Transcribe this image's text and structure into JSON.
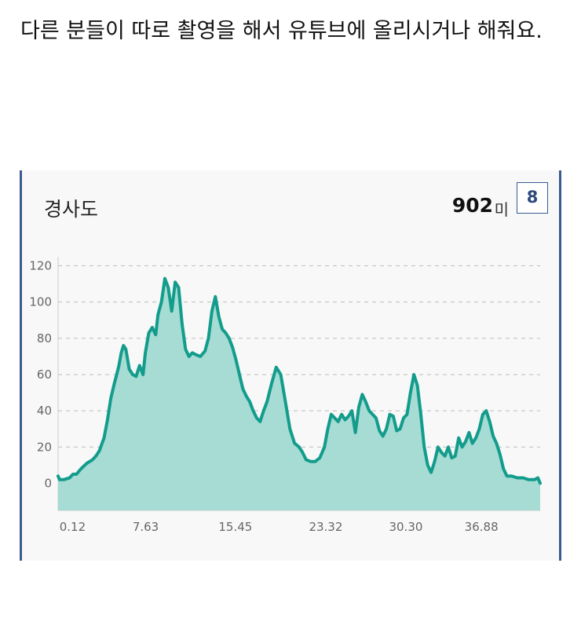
{
  "post": {
    "text": "다른 분들이 따로 촬영을 해서 유튜브에 올리시거나 해줘요."
  },
  "card": {
    "title": "경사도",
    "value": "902",
    "unit": "미",
    "badge": "8"
  },
  "colors": {
    "line": "#139c8c",
    "fill": "#a6dcd3",
    "grid": "#bbbbbb",
    "card_border": "#3a5a92"
  },
  "chart_data": {
    "type": "area",
    "title": "경사도",
    "xlabel": "",
    "ylabel": "",
    "ylim": [
      -15,
      125
    ],
    "xlim": [
      0,
      42
    ],
    "grid": true,
    "yticks": [
      0,
      20,
      40,
      60,
      80,
      100,
      120
    ],
    "ytick_labels": [
      "0",
      "20",
      "40",
      "60",
      "80",
      "100",
      "120"
    ],
    "xticks": [
      0.12,
      7.63,
      15.45,
      23.32,
      30.3,
      36.88
    ],
    "xtick_labels": [
      "0.12",
      "7.63",
      "15.45",
      "23.32",
      "30.30",
      "36.88"
    ],
    "x": [
      0,
      0.12,
      0.5,
      1,
      1.3,
      1.6,
      2,
      2.5,
      3,
      3.3,
      3.6,
      4,
      4.3,
      4.6,
      4.9,
      5.1,
      5.3,
      5.5,
      5.7,
      5.9,
      6.2,
      6.5,
      6.8,
      7.1,
      7.4,
      7.6,
      7.9,
      8.2,
      8.5,
      8.7,
      9.0,
      9.3,
      9.6,
      9.9,
      10.2,
      10.5,
      10.8,
      11.1,
      11.4,
      11.7,
      12.0,
      12.4,
      12.8,
      13.1,
      13.4,
      13.7,
      14.0,
      14.3,
      14.6,
      14.9,
      15.2,
      15.5,
      15.8,
      16.1,
      16.4,
      16.7,
      17.0,
      17.3,
      17.6,
      17.9,
      18.2,
      18.6,
      19.0,
      19.4,
      19.8,
      20.2,
      20.6,
      21.0,
      21.3,
      21.6,
      22.0,
      22.4,
      22.8,
      23.2,
      23.5,
      23.8,
      24.1,
      24.4,
      24.7,
      25.0,
      25.3,
      25.6,
      25.9,
      26.2,
      26.5,
      26.8,
      27.1,
      27.4,
      27.7,
      28.0,
      28.3,
      28.6,
      28.9,
      29.2,
      29.5,
      29.8,
      30.1,
      30.4,
      30.7,
      31.0,
      31.3,
      31.6,
      31.9,
      32.2,
      32.5,
      32.8,
      33.1,
      33.4,
      33.7,
      34.0,
      34.3,
      34.6,
      34.9,
      35.2,
      35.5,
      35.8,
      36.1,
      36.4,
      36.7,
      37.0,
      37.3,
      37.6,
      37.9,
      38.2,
      38.5,
      38.8,
      39.1,
      39.5,
      40.0,
      40.5,
      41.0,
      41.5,
      41.8,
      42.0
    ],
    "values": [
      4,
      2,
      2,
      3,
      5,
      5,
      8,
      11,
      13,
      15,
      18,
      25,
      35,
      47,
      55,
      60,
      65,
      72,
      76,
      74,
      63,
      60,
      59,
      65,
      60,
      72,
      83,
      86,
      82,
      93,
      100,
      113,
      108,
      95,
      111,
      108,
      88,
      74,
      70,
      72,
      71,
      70,
      73,
      80,
      95,
      103,
      92,
      85,
      83,
      80,
      75,
      68,
      60,
      52,
      48,
      45,
      40,
      36,
      34,
      40,
      45,
      55,
      64,
      60,
      45,
      30,
      22,
      20,
      17,
      13,
      12,
      12,
      14,
      20,
      30,
      38,
      36,
      34,
      38,
      35,
      37,
      40,
      28,
      42,
      49,
      45,
      40,
      38,
      36,
      29,
      26,
      30,
      38,
      37,
      29,
      30,
      36,
      38,
      50,
      60,
      54,
      38,
      20,
      10,
      6,
      12,
      20,
      17,
      15,
      20,
      14,
      15,
      25,
      20,
      23,
      28,
      22,
      25,
      30,
      38,
      40,
      34,
      26,
      22,
      16,
      8,
      4,
      4,
      3,
      3,
      2,
      2,
      3,
      0
    ]
  }
}
